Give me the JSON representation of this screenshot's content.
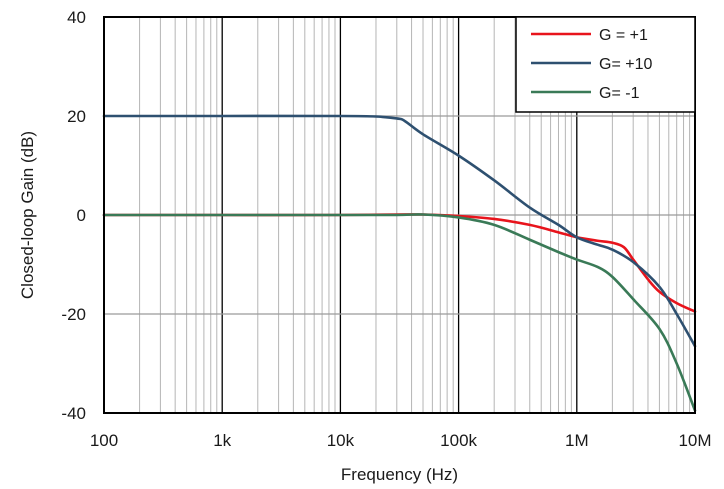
{
  "chart_data": {
    "type": "line",
    "title": "",
    "xlabel": "Frequency (Hz)",
    "ylabel": "Closed-loop Gain (dB)",
    "x_scale": "log",
    "xlim": [
      100,
      10000000
    ],
    "ylim": [
      -40,
      40
    ],
    "x_ticks": [
      {
        "value": 100,
        "label": "100"
      },
      {
        "value": 1000,
        "label": "1k"
      },
      {
        "value": 10000,
        "label": "10k"
      },
      {
        "value": 100000,
        "label": "100k"
      },
      {
        "value": 1000000,
        "label": "1M"
      },
      {
        "value": 10000000,
        "label": "10M"
      }
    ],
    "y_ticks": [
      {
        "value": 40,
        "label": "40"
      },
      {
        "value": 20,
        "label": "20"
      },
      {
        "value": 0,
        "label": "0"
      },
      {
        "value": -20,
        "label": "-20"
      },
      {
        "value": -40,
        "label": "-40"
      }
    ],
    "grid": true,
    "legend_position": "top-right",
    "series": [
      {
        "name": "G = +1",
        "color": "#e8141c",
        "points": [
          [
            100,
            0
          ],
          [
            1000,
            0
          ],
          [
            10000,
            0
          ],
          [
            30000,
            0.1
          ],
          [
            50000,
            0.1
          ],
          [
            100000,
            -0.2
          ],
          [
            200000,
            -0.8
          ],
          [
            400000,
            -2
          ],
          [
            700000,
            -3.5
          ],
          [
            1000000,
            -4.5
          ],
          [
            1500000,
            -5.2
          ],
          [
            2000000,
            -5.6
          ],
          [
            2500000,
            -6.5
          ],
          [
            3000000,
            -9
          ],
          [
            4000000,
            -13
          ],
          [
            5000000,
            -15.5
          ],
          [
            7000000,
            -17.8
          ],
          [
            10000000,
            -19.5
          ]
        ]
      },
      {
        "name": "G= +10",
        "color": "#2e5070",
        "points": [
          [
            100,
            20
          ],
          [
            1000,
            20
          ],
          [
            10000,
            20
          ],
          [
            20000,
            19.9
          ],
          [
            30000,
            19.5
          ],
          [
            35000,
            19
          ],
          [
            50000,
            16.3
          ],
          [
            100000,
            12
          ],
          [
            200000,
            7
          ],
          [
            400000,
            1.5
          ],
          [
            700000,
            -2
          ],
          [
            1000000,
            -4.5
          ],
          [
            1500000,
            -6
          ],
          [
            2000000,
            -7
          ],
          [
            3000000,
            -9.5
          ],
          [
            5000000,
            -14.5
          ],
          [
            7000000,
            -20
          ],
          [
            10000000,
            -26.5
          ]
        ]
      },
      {
        "name": "G= -1",
        "color": "#3a7a57",
        "points": [
          [
            100,
            0
          ],
          [
            1000,
            0
          ],
          [
            10000,
            0
          ],
          [
            30000,
            0
          ],
          [
            50000,
            0.1
          ],
          [
            100000,
            -0.5
          ],
          [
            200000,
            -2
          ],
          [
            400000,
            -5
          ],
          [
            700000,
            -7.5
          ],
          [
            1000000,
            -9
          ],
          [
            1500000,
            -10.5
          ],
          [
            2000000,
            -12.5
          ],
          [
            3000000,
            -17
          ],
          [
            5000000,
            -23
          ],
          [
            7000000,
            -30
          ],
          [
            10000000,
            -39.5
          ]
        ]
      }
    ]
  }
}
